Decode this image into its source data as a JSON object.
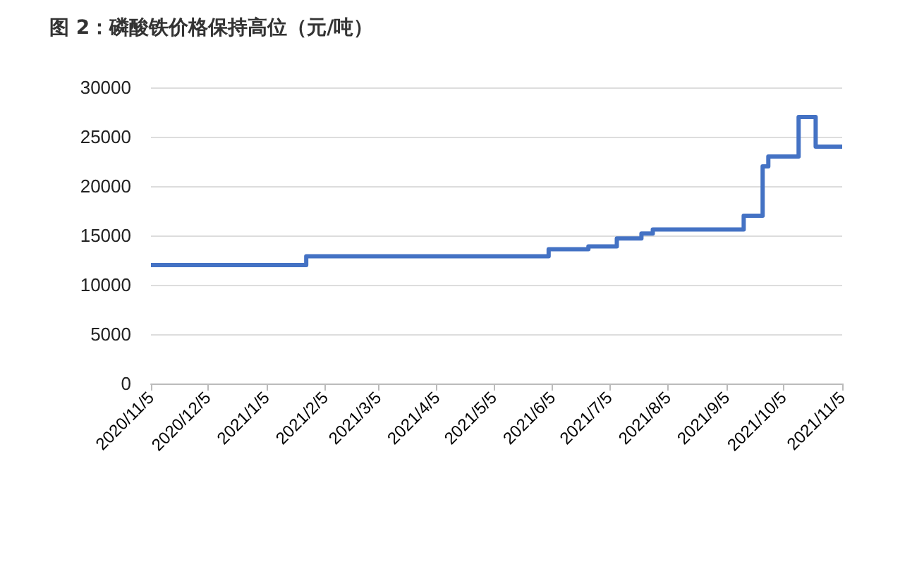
{
  "chart_data": {
    "type": "step",
    "title": "图 2：磷酸铁价格保持高位（元/吨）",
    "series": [
      {
        "color": "#4472c4",
        "x": [
          "2020-11-05",
          "2021-01-26",
          "2021-06-03",
          "2021-06-24",
          "2021-07-09",
          "2021-07-22",
          "2021-07-28",
          "2021-09-14",
          "2021-09-22",
          "2021-09-24",
          "2021-09-27",
          "2021-10-11",
          "2021-10-13",
          "2021-10-19",
          "2021-10-22",
          "2021-11-05"
        ],
        "values": [
          12000,
          12900,
          13600,
          13900,
          14700,
          15200,
          15600,
          17000,
          17000,
          22000,
          23000,
          23000,
          27000,
          27000,
          24000,
          24000
        ]
      }
    ],
    "xlim": [
      "2020-11-05",
      "2021-11-05"
    ],
    "xticks": [
      {
        "value": "2020-11-05",
        "label": "2020/11/5"
      },
      {
        "value": "2020-12-05",
        "label": "2020/12/5"
      },
      {
        "value": "2021-01-05",
        "label": "2021/1/5"
      },
      {
        "value": "2021-02-05",
        "label": "2021/2/5"
      },
      {
        "value": "2021-03-05",
        "label": "2021/3/5"
      },
      {
        "value": "2021-04-05",
        "label": "2021/4/5"
      },
      {
        "value": "2021-05-05",
        "label": "2021/5/5"
      },
      {
        "value": "2021-06-05",
        "label": "2021/6/5"
      },
      {
        "value": "2021-07-05",
        "label": "2021/7/5"
      },
      {
        "value": "2021-08-05",
        "label": "2021/8/5"
      },
      {
        "value": "2021-09-05",
        "label": "2021/9/5"
      },
      {
        "value": "2021-10-05",
        "label": "2021/10/5"
      },
      {
        "value": "2021-11-05",
        "label": "2021/11/5"
      }
    ],
    "ylim": [
      0,
      30000
    ],
    "yticks": [
      0,
      5000,
      10000,
      15000,
      20000,
      25000,
      30000
    ],
    "grid": "y",
    "marker": "none",
    "line_style": "solid"
  }
}
